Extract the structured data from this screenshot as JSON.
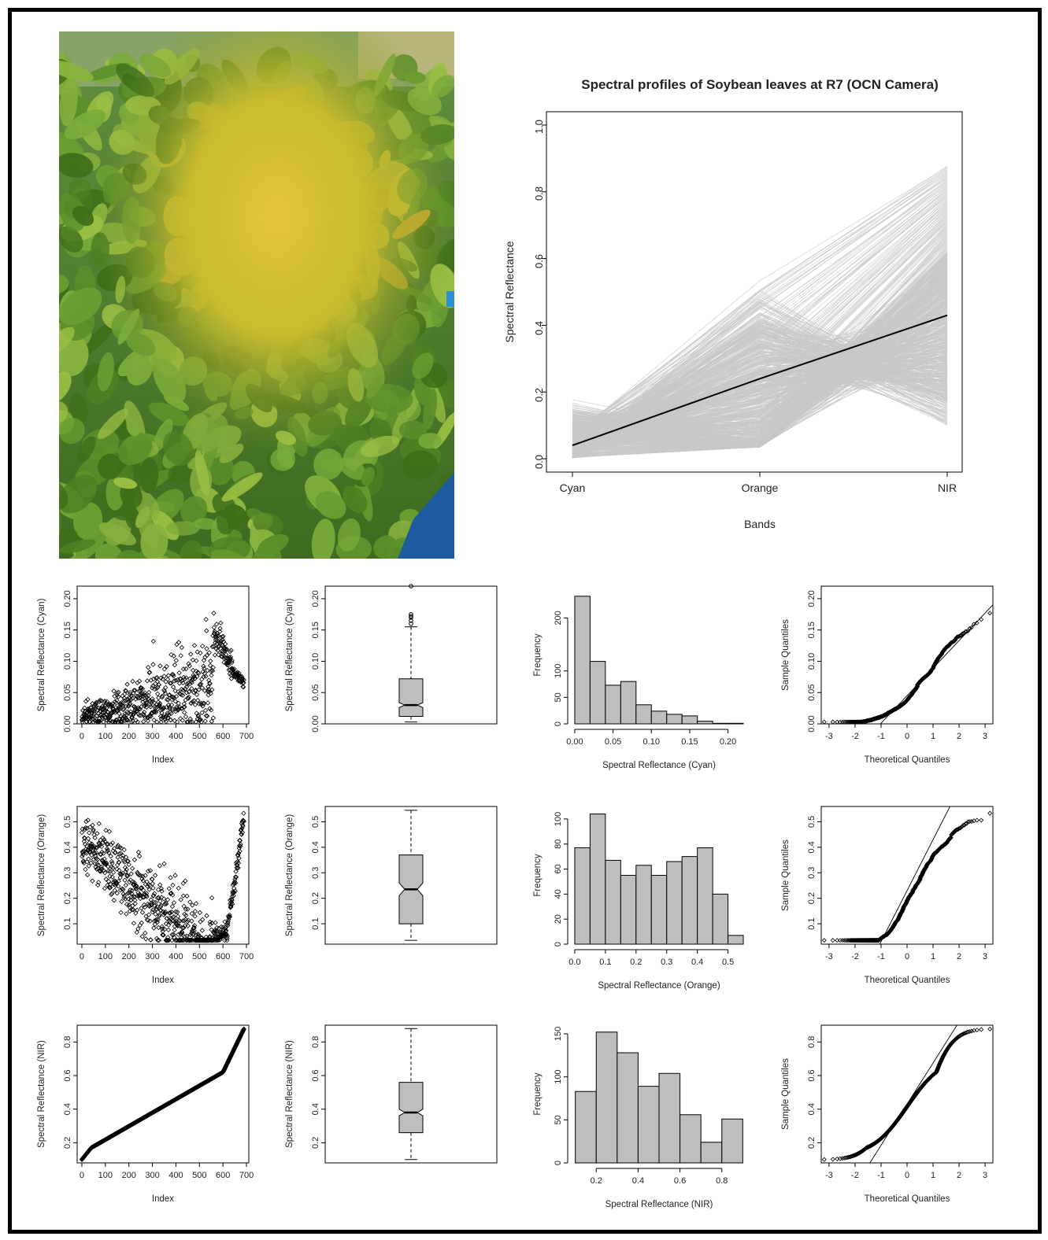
{
  "figure": {
    "photo_subject": "soybean canopy at R7 stage",
    "main_chart": {
      "title": "Spectral profiles of Soybean leaves at R7 (OCN Camera)",
      "xlabel": "Bands",
      "ylabel": "Spectral Reflectance",
      "band_labels": [
        "Cyan",
        "Orange",
        "NIR"
      ],
      "yticks": [
        "0.0",
        "0.2",
        "0.4",
        "0.6",
        "0.8",
        "1.0"
      ]
    },
    "rows": [
      {
        "band": "Cyan",
        "ylabel": "Spectral Reflectance (Cyan)",
        "index_xlabel": "Index",
        "index_yticks": [
          "0.00",
          "0.05",
          "0.10",
          "0.15",
          "0.20"
        ],
        "box_yticks": [
          "0.00",
          "0.05",
          "0.10",
          "0.15",
          "0.20"
        ],
        "hist_xlabel": "Spectral Reflectance (Cyan)",
        "hist_ylabel": "Frequency",
        "hist_xticks": [
          "0.00",
          "0.05",
          "0.10",
          "0.15",
          "0.20"
        ],
        "hist_yticks": [
          "0",
          "50",
          "100",
          "200"
        ],
        "qq_xlabel": "Theoretical Quantiles",
        "qq_ylabel": "Sample Quantiles",
        "qq_yticks": [
          "0.00",
          "0.05",
          "0.10",
          "0.15",
          "0.20"
        ]
      },
      {
        "band": "Orange",
        "ylabel": "Spectral Reflectance (Orange)",
        "index_xlabel": "Index",
        "index_yticks": [
          "0.1",
          "0.2",
          "0.3",
          "0.4",
          "0.5"
        ],
        "box_yticks": [
          "0.1",
          "0.2",
          "0.3",
          "0.4",
          "0.5"
        ],
        "hist_xlabel": "Spectral Reflectance (Orange)",
        "hist_ylabel": "Frequency",
        "hist_xticks": [
          "0.0",
          "0.1",
          "0.2",
          "0.3",
          "0.4",
          "0.5"
        ],
        "hist_yticks": [
          "0",
          "20",
          "40",
          "60",
          "80",
          "100"
        ],
        "qq_xlabel": "Theoretical Quantiles",
        "qq_ylabel": "Sample Quantiles",
        "qq_yticks": [
          "0.1",
          "0.2",
          "0.3",
          "0.4",
          "0.5"
        ]
      },
      {
        "band": "NIR",
        "ylabel": "Spectral Reflectance (NIR)",
        "index_xlabel": "Index",
        "index_yticks": [
          "0.2",
          "0.4",
          "0.6",
          "0.8"
        ],
        "box_yticks": [
          "0.2",
          "0.4",
          "0.6",
          "0.8"
        ],
        "hist_xlabel": "Spectral Reflectance (NIR)",
        "hist_ylabel": "Frequency",
        "hist_xticks": [
          "0.2",
          "0.4",
          "0.6",
          "0.8"
        ],
        "hist_yticks": [
          "0",
          "50",
          "100",
          "150"
        ],
        "qq_xlabel": "Theoretical Quantiles",
        "qq_ylabel": "Sample Quantiles",
        "qq_yticks": [
          "0.2",
          "0.4",
          "0.6",
          "0.8"
        ]
      }
    ],
    "index_xticks": [
      "0",
      "100",
      "200",
      "300",
      "400",
      "500",
      "600",
      "700"
    ],
    "qq_xticks": [
      "-3",
      "-2",
      "-1",
      "0",
      "1",
      "2",
      "3"
    ]
  },
  "chart_data": [
    {
      "type": "line",
      "title": "Spectral profiles of Soybean leaves at R7 (OCN Camera)",
      "xlabel": "Bands",
      "ylabel": "Spectral Reflectance",
      "categories": [
        "Cyan",
        "Orange",
        "NIR"
      ],
      "ylim": [
        0,
        1.0
      ],
      "series_count": 690,
      "series_color": "#c8c8c8",
      "ranges": {
        "Cyan": [
          0.0,
          0.22
        ],
        "Orange": [
          0.03,
          0.55
        ],
        "NIR": [
          0.1,
          0.88
        ]
      },
      "mean_line": {
        "color": "#000000",
        "values": [
          0.04,
          0.24,
          0.43
        ]
      },
      "grid": false,
      "legend": "none"
    },
    {
      "type": "scatter",
      "band": "Cyan",
      "xlabel": "Index",
      "ylabel": "Spectral Reflectance (Cyan)",
      "xlim": [
        0,
        700
      ],
      "ylim": [
        0,
        0.22
      ],
      "n": 690
    },
    {
      "type": "box",
      "band": "Cyan",
      "ylabel": "Spectral Reflectance (Cyan)",
      "stats": {
        "min": 0.003,
        "q1": 0.012,
        "median": 0.03,
        "q3": 0.072,
        "whisker_high": 0.155,
        "notch": [
          0.026,
          0.034
        ]
      },
      "outliers": [
        0.16,
        0.165,
        0.17,
        0.172,
        0.175,
        0.22
      ]
    },
    {
      "type": "bar",
      "band": "Cyan",
      "xlabel": "Spectral Reflectance (Cyan)",
      "ylabel": "Frequency",
      "bin_edges": [
        0.0,
        0.02,
        0.04,
        0.06,
        0.08,
        0.1,
        0.12,
        0.14,
        0.16,
        0.18,
        0.2,
        0.22
      ],
      "values": [
        241,
        118,
        73,
        80,
        36,
        24,
        18,
        15,
        5,
        1,
        1
      ]
    },
    {
      "type": "scatter",
      "band": "Cyan",
      "xlabel": "Theoretical Quantiles",
      "ylabel": "Sample Quantiles",
      "xlim": [
        -3.3,
        3.3
      ],
      "ylim": [
        0,
        0.22
      ],
      "qq_line": {
        "intercept": 0.045,
        "slope": 0.044
      }
    },
    {
      "type": "scatter",
      "band": "Orange",
      "xlabel": "Index",
      "ylabel": "Spectral Reflectance (Orange)",
      "xlim": [
        0,
        700
      ],
      "ylim": [
        0.02,
        0.56
      ],
      "n": 690
    },
    {
      "type": "box",
      "band": "Orange",
      "ylabel": "Spectral Reflectance (Orange)",
      "stats": {
        "min": 0.035,
        "q1": 0.1,
        "median": 0.235,
        "q3": 0.37,
        "whisker_high": 0.545,
        "notch": [
          0.21,
          0.26
        ]
      },
      "outliers": []
    },
    {
      "type": "bar",
      "band": "Orange",
      "xlabel": "Spectral Reflectance (Orange)",
      "ylabel": "Frequency",
      "bin_edges": [
        0.0,
        0.05,
        0.1,
        0.15,
        0.2,
        0.25,
        0.3,
        0.35,
        0.4,
        0.45,
        0.5,
        0.55
      ],
      "values": [
        77,
        104,
        67,
        55,
        63,
        55,
        66,
        70,
        77,
        40,
        7
      ]
    },
    {
      "type": "scatter",
      "band": "Orange",
      "xlabel": "Theoretical Quantiles",
      "ylabel": "Sample Quantiles",
      "xlim": [
        -3.3,
        3.3
      ],
      "ylim": [
        0.02,
        0.56
      ],
      "qq_line": {
        "intercept": 0.23,
        "slope": 0.2
      }
    },
    {
      "type": "scatter",
      "band": "NIR",
      "xlabel": "Index",
      "ylabel": "Spectral Reflectance (NIR)",
      "xlim": [
        0,
        700
      ],
      "ylim": [
        0.08,
        0.9
      ],
      "n": 690
    },
    {
      "type": "box",
      "band": "NIR",
      "ylabel": "Spectral Reflectance (NIR)",
      "stats": {
        "min": 0.1,
        "q1": 0.26,
        "median": 0.38,
        "q3": 0.56,
        "whisker_high": 0.88,
        "notch": [
          0.36,
          0.4
        ]
      },
      "outliers": []
    },
    {
      "type": "bar",
      "band": "NIR",
      "xlabel": "Spectral Reflectance (NIR)",
      "ylabel": "Frequency",
      "bin_edges": [
        0.1,
        0.2,
        0.3,
        0.4,
        0.5,
        0.6,
        0.7,
        0.8,
        0.9
      ],
      "values": [
        83,
        152,
        128,
        89,
        104,
        56,
        24,
        51
      ]
    },
    {
      "type": "scatter",
      "band": "NIR",
      "xlabel": "Theoretical Quantiles",
      "ylabel": "Sample Quantiles",
      "xlim": [
        -3.3,
        3.3
      ],
      "ylim": [
        0.08,
        0.9
      ],
      "qq_line": {
        "intercept": 0.43,
        "slope": 0.245
      }
    }
  ]
}
